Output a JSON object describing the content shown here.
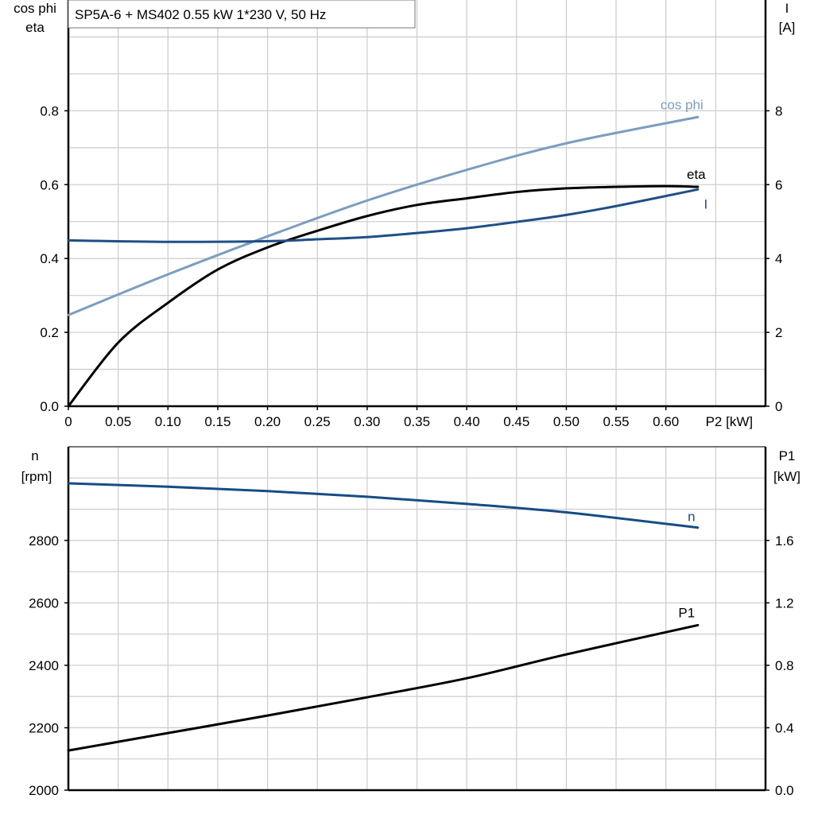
{
  "chart_data": [
    {
      "type": "line",
      "title": "SP5A-6 + MS402   0.55 kW   1*230 V, 50 Hz",
      "xlabel": "P2 [kW]",
      "xlim": [
        0,
        0.7
      ],
      "xticks": [
        "0",
        "0.05",
        "0.10",
        "0.15",
        "0.20",
        "0.25",
        "0.30",
        "0.35",
        "0.40",
        "0.45",
        "0.50",
        "0.55",
        "0.60"
      ],
      "ylabel_left": [
        "cos phi",
        "eta"
      ],
      "ylim_left": [
        0,
        1.1
      ],
      "yticks_left": [
        "0.0",
        "0.2",
        "0.4",
        "0.6",
        "0.8"
      ],
      "ylabel_right": [
        "I",
        "[A]"
      ],
      "ylim_right": [
        0,
        11
      ],
      "yticks_right": [
        "0",
        "2",
        "4",
        "6",
        "8"
      ],
      "grid": true,
      "series": [
        {
          "name": "cos phi",
          "axis": "left",
          "color": "#7b9dc0",
          "x": [
            0,
            0.1,
            0.2,
            0.3,
            0.4,
            0.5,
            0.632
          ],
          "y": [
            0.247,
            0.357,
            0.46,
            0.557,
            0.64,
            0.712,
            0.783
          ]
        },
        {
          "name": "eta",
          "axis": "left",
          "color": "#000000",
          "x": [
            0,
            0.05,
            0.1,
            0.15,
            0.2,
            0.25,
            0.3,
            0.35,
            0.4,
            0.45,
            0.5,
            0.55,
            0.6,
            0.632
          ],
          "y": [
            0,
            0.172,
            0.28,
            0.37,
            0.43,
            0.475,
            0.515,
            0.545,
            0.563,
            0.58,
            0.59,
            0.594,
            0.596,
            0.594
          ]
        },
        {
          "name": "I",
          "axis": "right",
          "color": "#1f4f86",
          "x": [
            0,
            0.1,
            0.2,
            0.25,
            0.3,
            0.35,
            0.4,
            0.45,
            0.5,
            0.55,
            0.632
          ],
          "y": [
            4.49,
            4.45,
            4.47,
            4.52,
            4.58,
            4.69,
            4.82,
            4.99,
            5.18,
            5.42,
            5.87
          ]
        }
      ]
    },
    {
      "type": "line",
      "xlim": [
        0,
        0.7
      ],
      "ylabel_left": [
        "n",
        "[rpm]"
      ],
      "ylim_left": [
        2000,
        3100
      ],
      "yticks_left": [
        "2000",
        "2200",
        "2400",
        "2600",
        "2800"
      ],
      "ylabel_right": [
        "P1",
        "[kW]"
      ],
      "ylim_right": [
        0,
        2.2
      ],
      "yticks_right": [
        "0.0",
        "0.4",
        "0.8",
        "1.2",
        "1.6"
      ],
      "grid": true,
      "series": [
        {
          "name": "n",
          "axis": "left",
          "color": "#154d85",
          "x": [
            0,
            0.1,
            0.2,
            0.3,
            0.4,
            0.5,
            0.632
          ],
          "y": [
            2983,
            2972,
            2958,
            2940,
            2917,
            2890,
            2841
          ]
        },
        {
          "name": "P1",
          "axis": "right",
          "color": "#000000",
          "x": [
            0,
            0.1,
            0.2,
            0.3,
            0.4,
            0.5,
            0.632
          ],
          "y": [
            0.254,
            0.366,
            0.478,
            0.595,
            0.717,
            0.87,
            1.057
          ]
        }
      ]
    }
  ]
}
